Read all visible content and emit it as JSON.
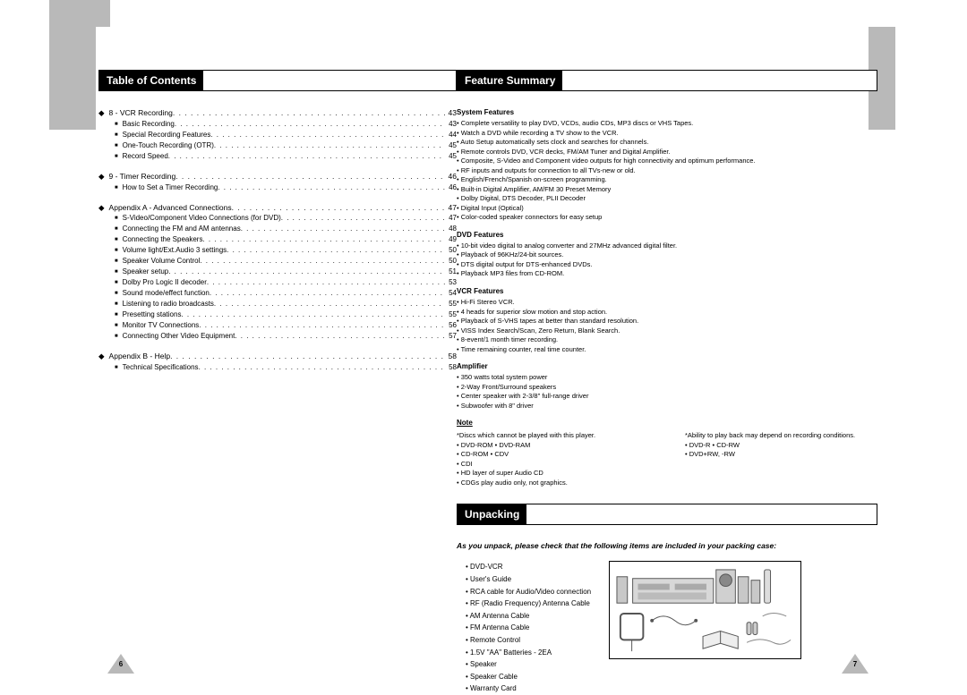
{
  "leftPage": {
    "header": "Table of Contents",
    "pageNumber": "6",
    "sections": [
      {
        "title": "8 - VCR Recording",
        "page": "43",
        "items": [
          {
            "label": "Basic Recording",
            "page": "43"
          },
          {
            "label": "Special Recording Features",
            "page": "44"
          },
          {
            "label": "One-Touch Recording (OTR)",
            "page": "45"
          },
          {
            "label": "Record Speed",
            "page": "45"
          }
        ]
      },
      {
        "title": "9 - Timer Recording",
        "page": "46",
        "items": [
          {
            "label": "How to Set a Timer Recording",
            "page": "46"
          }
        ]
      },
      {
        "title": "Appendix A - Advanced Connections",
        "page": "47",
        "items": [
          {
            "label": "S-Video/Component Video Connections (for DVD)",
            "page": "47"
          },
          {
            "label": "Connecting the FM and AM antennas",
            "page": "48"
          },
          {
            "label": "Connecting the Speakers",
            "page": "49"
          },
          {
            "label": "Volume light/Ext.Audio 3 settings",
            "page": "50"
          },
          {
            "label": "Speaker Volume Control",
            "page": "50"
          },
          {
            "label": "Speaker setup",
            "page": "51"
          },
          {
            "label": "Dolby Pro Logic II decoder",
            "page": "53"
          },
          {
            "label": "Sound mode/effect function",
            "page": "54"
          },
          {
            "label": "Listening to radio broadcasts",
            "page": "55"
          },
          {
            "label": "Presetting stations",
            "page": "55"
          },
          {
            "label": "Monitor TV Connections",
            "page": "56"
          },
          {
            "label": "Connecting Other Video Equipment",
            "page": "57"
          }
        ]
      },
      {
        "title": "Appendix B - Help",
        "page": "58",
        "items": [
          {
            "label": "Technical Specifications",
            "page": "58"
          }
        ]
      }
    ]
  },
  "rightPage": {
    "header1": "Feature Summary",
    "header2": "Unpacking",
    "pageNumber": "7",
    "features": {
      "systemTitle": "System Features",
      "system": [
        "Complete versatility to play DVD, VCDs, audio CDs, MP3 discs or VHS Tapes.",
        "Watch a DVD while recording a TV show to the VCR.",
        "Auto Setup automatically sets clock and searches for channels.",
        "Remote controls DVD, VCR decks, FM/AM Tuner and Digital Amplifier.",
        "Composite, S-Video and Component video outputs for high connectivity and optimum performance.",
        "RF inputs and outputs for connection to all TVs-new or old.",
        "English/French/Spanish on-screen programming.",
        "Built-in Digital Amplifier, AM/FM 30 Preset Memory",
        "Dolby Digital, DTS Decoder, PLII Decoder",
        "Digital Input (Optical)",
        "Color-coded speaker connectors for easy setup"
      ],
      "dvdTitle": "DVD Features",
      "dvd": [
        "10-bit video digital to analog converter and 27MHz advanced digital filter.",
        "Playback of 96KHz/24-bit sources.",
        "DTS digital output for DTS-enhanced DVDs.",
        "Playback MP3 files from CD-ROM."
      ],
      "vcrTitle": "VCR Features",
      "vcr": [
        "Hi-Fi Stereo VCR.",
        "4 heads for superior slow motion and stop action.",
        "Playback of S-VHS tapes at better than standard resolution.",
        "VISS Index Search/Scan, Zero Return, Blank Search.",
        "8-event/1 month timer recording.",
        "Time remaining counter, real time counter."
      ],
      "ampTitle": "Amplifier",
      "amp": [
        "350 watts total system power",
        "2-Way Front/Surround speakers",
        "Center speaker with 2-3/8\" full-range driver",
        "Subwoofer with 8\" driver"
      ],
      "noteTitle": "Note",
      "noteLeft": [
        "*Discs which cannot be played with this player.",
        "• DVD-ROM        • DVD-RAM",
        "• CD-ROM          • CDV",
        "• CDI",
        "• HD layer of super Audio CD",
        "• CDGs play audio only, not graphics."
      ],
      "noteRight": [
        "*Ability to play back may depend on recording conditions.",
        "• DVD-R            • CD-RW",
        "• DVD+RW, -RW"
      ]
    },
    "unpacking": {
      "intro": "As you unpack, please check that the following items are included in your packing case:",
      "items": [
        "DVD-VCR",
        "User's Guide",
        "RCA cable for Audio/Video connection",
        "RF (Radio Frequency) Antenna Cable",
        "AM Antenna Cable",
        "FM Antenna Cable",
        "Remote Control",
        "1.5V \"AA\" Batteries - 2EA",
        "Speaker",
        "Speaker Cable",
        "Warranty Card"
      ]
    }
  },
  "colors": {
    "gray": "#b9b9b9",
    "black": "#000000",
    "white": "#ffffff"
  }
}
